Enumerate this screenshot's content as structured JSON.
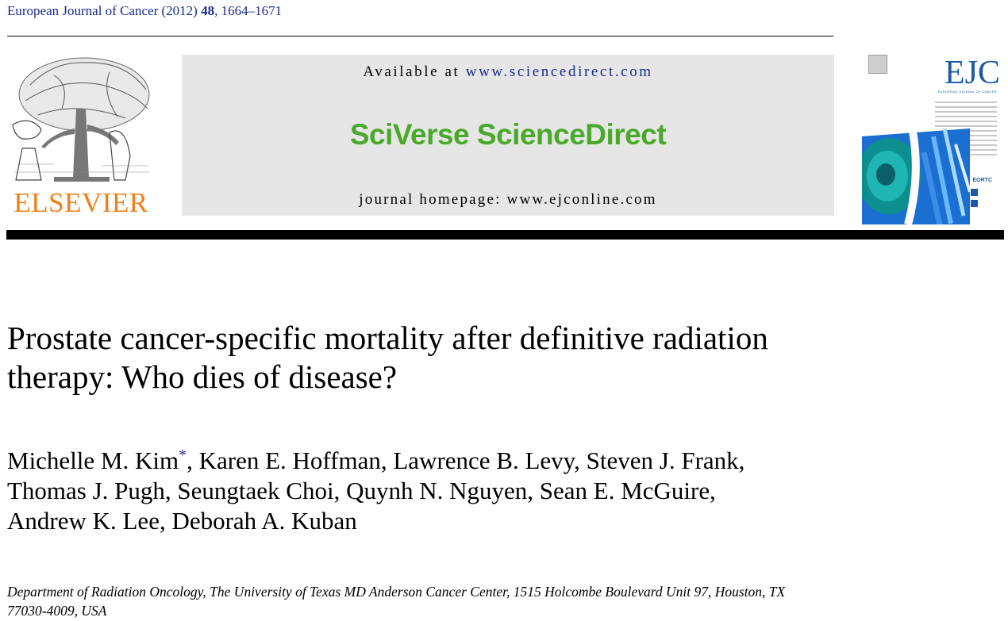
{
  "header": {
    "journal_name": "European Journal of Cancer",
    "year": "(2012)",
    "volume": "48",
    "pages": "1664–1671"
  },
  "publisher": {
    "name": "ELSEVIER"
  },
  "banner": {
    "available_prefix": "Available at",
    "available_url": "www.sciencedirect.com",
    "brand": "SciVerse ScienceDirect",
    "homepage": "journal homepage: www.ejconline.com"
  },
  "cover": {
    "journal_abbrev": "EJC",
    "subtitle": "EUROPEAN JOURNAL OF CANCER",
    "society": "EORTC"
  },
  "article": {
    "title_lines": [
      "Prostate cancer-specific mortality after definitive radiation",
      "therapy: Who dies of disease?"
    ],
    "author_lines": [
      "Michelle M. Kim",
      ", Karen E. Hoffman, Lawrence B. Levy, Steven J. Frank,",
      "Thomas J. Pugh, Seungtaek Choi, Quynh N. Nguyen, Sean E. McGuire,",
      "Andrew K. Lee, Deborah A. Kuban"
    ],
    "corresponding_mark": "*",
    "affiliation_lines": [
      "Department of Radiation Oncology, The University of Texas MD Anderson Cancer Center, 1515 Holcombe Boulevard Unit 97, Houston, TX",
      "77030-4009, USA"
    ]
  },
  "colors": {
    "link_blue": "#1b2a8a",
    "elsevier_orange": "#f07f1a",
    "sciverse_green": "#4aa82b",
    "banner_gray": "#e6e6e6",
    "ejc_blue": "#1c5aa8"
  }
}
